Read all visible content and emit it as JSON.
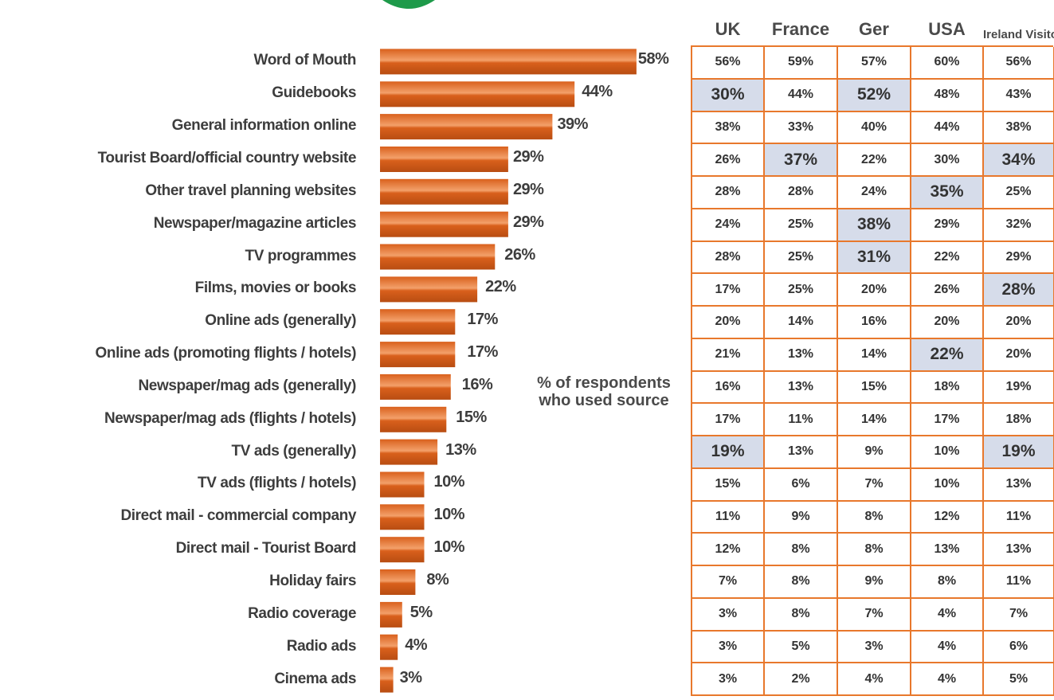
{
  "chart_data": {
    "type": "bar",
    "orientation": "horizontal",
    "categories": [
      "Word of Mouth",
      "Guidebooks",
      "General information online",
      "Tourist Board/official country website",
      "Other travel planning websites",
      "Newspaper/magazine articles",
      "TV programmes",
      "Films, movies or books",
      "Online ads (generally)",
      "Online ads (promoting flights / hotels)",
      "Newspaper/mag ads (generally)",
      "Newspaper/mag ads (flights / hotels)",
      "TV ads (generally)",
      "TV ads (flights / hotels)",
      "Direct mail - commercial company",
      "Direct mail - Tourist Board",
      "Holiday fairs",
      "Radio coverage",
      "Radio ads",
      "Cinema ads"
    ],
    "values": [
      58,
      44,
      39,
      29,
      29,
      29,
      26,
      22,
      17,
      17,
      16,
      15,
      13,
      10,
      10,
      10,
      8,
      5,
      4,
      3
    ],
    "value_labels": [
      "58%",
      "44%",
      "39%",
      "29%",
      "29%",
      "29%",
      "26%",
      "22%",
      "17%",
      "17%",
      "16%",
      "15%",
      "13%",
      "10%",
      "10%",
      "10%",
      "8%",
      "5%",
      "4%",
      "3%"
    ],
    "annotation": "% of respondents who used source",
    "bar_color": "#d9601c",
    "bar_highlight_color": "#f3a06a",
    "table": {
      "columns": [
        "UK",
        "France",
        "Ger",
        "USA",
        "Ireland Visitors"
      ],
      "rows": [
        [
          "56%",
          "59%",
          "57%",
          "60%",
          "56%"
        ],
        [
          "30%",
          "44%",
          "52%",
          "48%",
          "43%"
        ],
        [
          "38%",
          "33%",
          "40%",
          "44%",
          "38%"
        ],
        [
          "26%",
          "37%",
          "22%",
          "30%",
          "34%"
        ],
        [
          "28%",
          "28%",
          "24%",
          "35%",
          "25%"
        ],
        [
          "24%",
          "25%",
          "38%",
          "29%",
          "32%"
        ],
        [
          "28%",
          "25%",
          "31%",
          "22%",
          "29%"
        ],
        [
          "17%",
          "25%",
          "20%",
          "26%",
          "28%"
        ],
        [
          "20%",
          "14%",
          "16%",
          "20%",
          "20%"
        ],
        [
          "21%",
          "13%",
          "14%",
          "22%",
          "20%"
        ],
        [
          "16%",
          "13%",
          "15%",
          "18%",
          "19%"
        ],
        [
          "17%",
          "11%",
          "14%",
          "17%",
          "18%"
        ],
        [
          "19%",
          "13%",
          "9%",
          "10%",
          "19%"
        ],
        [
          "15%",
          "6%",
          "7%",
          "10%",
          "13%"
        ],
        [
          "11%",
          "9%",
          "8%",
          "12%",
          "11%"
        ],
        [
          "12%",
          "8%",
          "8%",
          "13%",
          "13%"
        ],
        [
          "7%",
          "8%",
          "9%",
          "8%",
          "11%"
        ],
        [
          "3%",
          "8%",
          "7%",
          "4%",
          "7%"
        ],
        [
          "3%",
          "5%",
          "3%",
          "4%",
          "6%"
        ],
        [
          "3%",
          "2%",
          "4%",
          "4%",
          "5%"
        ]
      ],
      "highlighted": [
        [
          1,
          0
        ],
        [
          1,
          2
        ],
        [
          3,
          1
        ],
        [
          3,
          4
        ],
        [
          4,
          3
        ],
        [
          5,
          2
        ],
        [
          6,
          2
        ],
        [
          7,
          4
        ],
        [
          9,
          3
        ],
        [
          12,
          0
        ],
        [
          12,
          4
        ]
      ],
      "border_color": "#e8782c",
      "highlight_color": "#d6dcea"
    }
  },
  "colors": {
    "accent_green": "#1e9a4a"
  }
}
